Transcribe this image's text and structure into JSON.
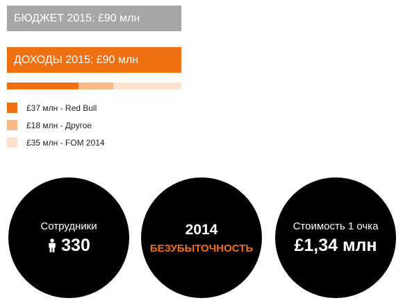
{
  "colors": {
    "budget": "#a6a6a6",
    "income": "#f07011",
    "red_bull": "#f07011",
    "other": "#f8b888",
    "fom": "#fde1cc",
    "circle": "#000000"
  },
  "budget_label": "БЮДЖЕТ 2015: £90 млн",
  "income_label": "ДОХОДЫ 2015: £90 млн",
  "income_breakdown": [
    {
      "label": "£37 млн - Red Bull",
      "value": 37,
      "color": "#f07011"
    },
    {
      "label": "£18 млн - Другое",
      "value": 18,
      "color": "#f8b888"
    },
    {
      "label": "£35 млн - FOM 2014",
      "value": 35,
      "color": "#fde1cc"
    }
  ],
  "stats": {
    "employees": {
      "label": "Сотрудники",
      "value": "330",
      "icon": "person-icon"
    },
    "breakeven": {
      "year": "2014",
      "label": "БЕЗУБЫТОЧНОСТЬ"
    },
    "cost_per_point": {
      "label": "Стоимость 1 очка",
      "value": "£1,34 млн"
    }
  }
}
